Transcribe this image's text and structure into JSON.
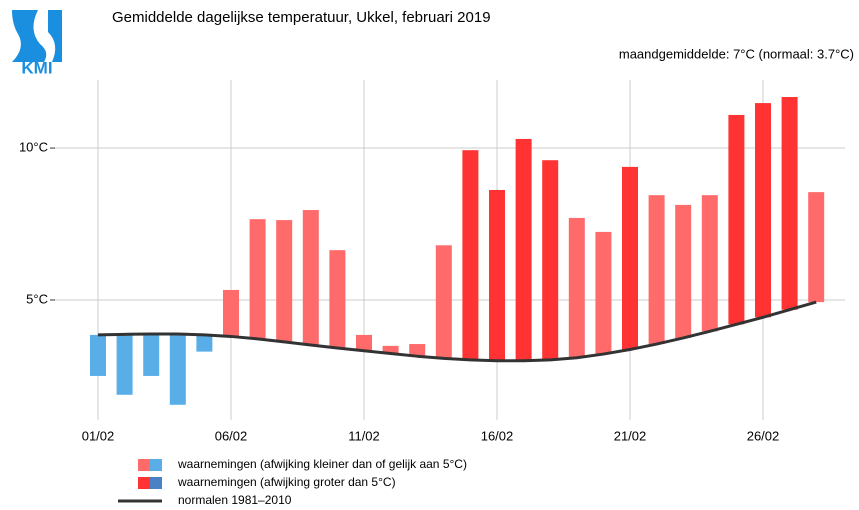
{
  "chart_data": {
    "type": "floating-bar",
    "logo": "KMI",
    "title": "Gemiddelde dagelijkse temperatuur, Ukkel, februari 2019",
    "subtitle": "maandgemiddelde: 7°C (normaal: 3.7°C)",
    "categories": [
      "01/02",
      null,
      null,
      null,
      null,
      "06/02",
      null,
      null,
      null,
      null,
      "11/02",
      null,
      null,
      null,
      null,
      "16/02",
      null,
      null,
      null,
      null,
      "21/02",
      null,
      null,
      null,
      null,
      "26/02",
      null,
      null
    ],
    "observations": {
      "values": [
        2.5,
        1.88,
        2.5,
        1.55,
        3.3,
        5.33,
        7.66,
        7.63,
        7.96,
        6.64,
        3.85,
        3.49,
        3.55,
        6.8,
        9.93,
        8.62,
        10.3,
        9.6,
        7.7,
        7.24,
        9.38,
        8.45,
        8.13,
        8.45,
        11.09,
        11.48,
        11.68,
        8.55
      ],
      "colors": [
        "#5aaee8",
        "#5aaee8",
        "#5aaee8",
        "#5aaee8",
        "#5aaee8",
        "#ff6b6b",
        "#ff6b6b",
        "#ff6b6b",
        "#ff6b6b",
        "#ff6b6b",
        "#ff6b6b",
        "#ff6b6b",
        "#ff6b6b",
        "#ff6b6b",
        "#ff3333",
        "#ff3333",
        "#ff3333",
        "#ff3333",
        "#ff6b6b",
        "#ff6b6b",
        "#ff3333",
        "#ff6b6b",
        "#ff6b6b",
        "#ff6b6b",
        "#ff3333",
        "#ff3333",
        "#ff3333",
        "#ff6b6b"
      ]
    },
    "normals": {
      "values": [
        3.85,
        3.87,
        3.88,
        3.88,
        3.85,
        3.8,
        3.72,
        3.62,
        3.52,
        3.42,
        3.33,
        3.24,
        3.15,
        3.08,
        3.03,
        3.0,
        3.0,
        3.03,
        3.1,
        3.22,
        3.37,
        3.55,
        3.75,
        3.97,
        4.2,
        4.43,
        4.68,
        4.93
      ],
      "color": "#333333"
    },
    "legend": [
      {
        "label": "waarnemingen (afwijking kleiner dan of gelijk aan 5°C)",
        "colors": [
          "#ff6b6b",
          "#5aaee8"
        ]
      },
      {
        "label": "waarnemingen (afwijking groter dan 5°C)",
        "colors": [
          "#ff3333",
          "#4a80c4"
        ]
      },
      {
        "label": "normalen 1981–2010",
        "colors": [
          "#333333"
        ]
      }
    ],
    "ylim": [
      1.05,
      12.24
    ],
    "yticks": [
      {
        "value": 5,
        "label": "5°C"
      },
      {
        "value": 10,
        "label": "10°C"
      }
    ],
    "grid": true
  }
}
